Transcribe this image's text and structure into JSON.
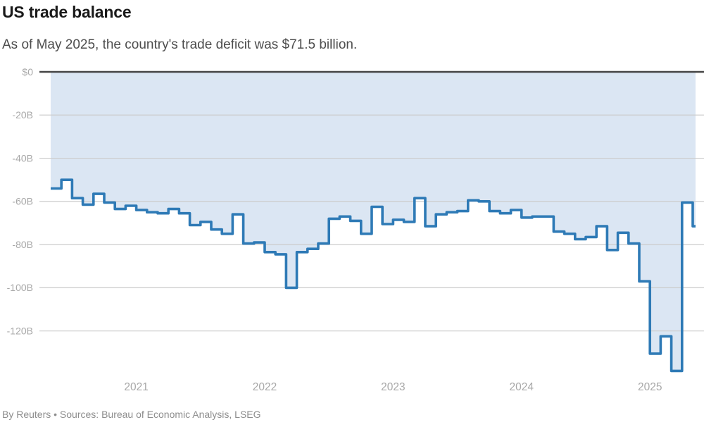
{
  "header": {
    "title": "US trade balance",
    "subtitle": "As of May 2025, the country's trade deficit was $71.5 billion."
  },
  "footer": {
    "byline": "By Reuters • Sources: Bureau of Economic Analysis, LSEG"
  },
  "chart_data": {
    "type": "area",
    "style": "step",
    "title": "US trade balance",
    "subtitle": "As of May 2025, the country's trade deficit was $71.5 billion.",
    "source": "By Reuters • Sources: Bureau of Economic Analysis, LSEG",
    "unit": "USD billions",
    "xlabel": "",
    "ylabel": "",
    "ylim": [
      -140,
      0
    ],
    "grid": true,
    "legend": "none",
    "x": [
      "2020-05",
      "2020-06",
      "2020-07",
      "2020-08",
      "2020-09",
      "2020-10",
      "2020-11",
      "2020-12",
      "2021-01",
      "2021-02",
      "2021-03",
      "2021-04",
      "2021-05",
      "2021-06",
      "2021-07",
      "2021-08",
      "2021-09",
      "2021-10",
      "2021-11",
      "2021-12",
      "2022-01",
      "2022-02",
      "2022-03",
      "2022-04",
      "2022-05",
      "2022-06",
      "2022-07",
      "2022-08",
      "2022-09",
      "2022-10",
      "2022-11",
      "2022-12",
      "2023-01",
      "2023-02",
      "2023-03",
      "2023-04",
      "2023-05",
      "2023-06",
      "2023-07",
      "2023-08",
      "2023-09",
      "2023-10",
      "2023-11",
      "2023-12",
      "2024-01",
      "2024-02",
      "2024-03",
      "2024-04",
      "2024-05",
      "2024-06",
      "2024-07",
      "2024-08",
      "2024-09",
      "2024-10",
      "2024-11",
      "2024-12",
      "2025-01",
      "2025-02",
      "2025-03",
      "2025-04",
      "2025-05"
    ],
    "values": [
      -54,
      -50,
      -58.5,
      -61.5,
      -56.5,
      -60.5,
      -63.5,
      -62,
      -64,
      -65,
      -65.5,
      -63.5,
      -65.5,
      -71,
      -69.5,
      -73,
      -75,
      -66,
      -79.5,
      -79,
      -83.5,
      -84.5,
      -100,
      -83.5,
      -82,
      -79.5,
      -68,
      -67,
      -69,
      -75,
      -62.5,
      -70.5,
      -68.5,
      -69.5,
      -58.5,
      -71.5,
      -66,
      -65,
      -64.5,
      -59.5,
      -60,
      -64.5,
      -65.5,
      -64,
      -67.5,
      -67,
      -67,
      -74,
      -75,
      -77.5,
      -76.5,
      -71.5,
      -82.5,
      -74.5,
      -79.5,
      -97,
      -130.5,
      -122.5,
      -138.5,
      -60.5,
      -71.5
    ],
    "last_point": {
      "label": "2025-05",
      "value": -71.5
    },
    "yticks": [
      {
        "label": "$0",
        "value": 0
      },
      {
        "label": "-20B",
        "value": -20
      },
      {
        "label": "-40B",
        "value": -40
      },
      {
        "label": "-60B",
        "value": -60
      },
      {
        "label": "-80B",
        "value": -80
      },
      {
        "label": "-100B",
        "value": -100
      },
      {
        "label": "-120B",
        "value": -120
      }
    ],
    "xticks": [
      {
        "label": "2021",
        "month_index": 8
      },
      {
        "label": "2022",
        "month_index": 20
      },
      {
        "label": "2023",
        "month_index": 32
      },
      {
        "label": "2024",
        "month_index": 44
      },
      {
        "label": "2025",
        "month_index": 56
      }
    ],
    "colors": {
      "line": "#2e7ab6",
      "fill": "#dbe6f3",
      "grid": "#cbcbcb",
      "zero_axis": "#454545",
      "tick_text": "#a8a8a8"
    }
  }
}
